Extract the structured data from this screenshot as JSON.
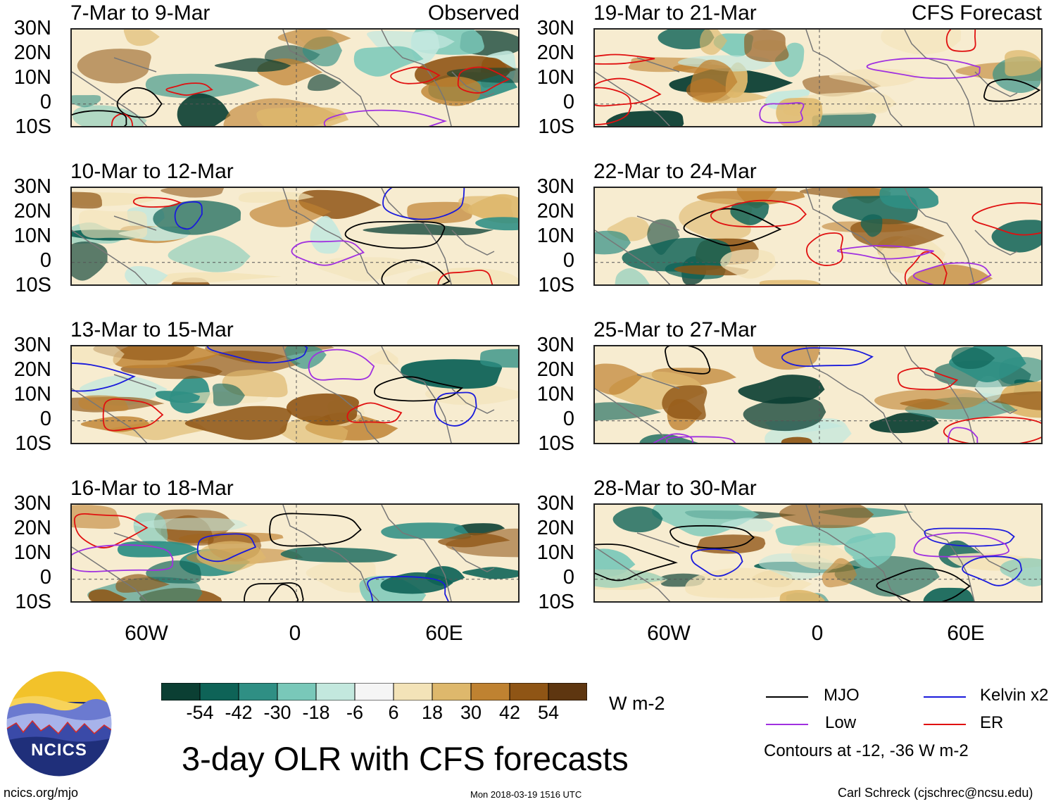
{
  "header": {
    "left_label": "Observed",
    "right_label": "CFS Forecast"
  },
  "panels_left": [
    {
      "period": "7-Mar to 9-Mar"
    },
    {
      "period": "10-Mar to 12-Mar"
    },
    {
      "period": "13-Mar to 15-Mar"
    },
    {
      "period": "16-Mar to 18-Mar"
    }
  ],
  "panels_right": [
    {
      "period": "19-Mar to 21-Mar"
    },
    {
      "period": "22-Mar to 24-Mar"
    },
    {
      "period": "25-Mar to 27-Mar"
    },
    {
      "period": "28-Mar to 30-Mar"
    }
  ],
  "axes": {
    "lat_ticks": [
      "30N",
      "20N",
      "10N",
      "0",
      "10S"
    ],
    "lon_ticks": [
      "60W",
      "0",
      "60E"
    ]
  },
  "colorbar": {
    "unit": "W m-2",
    "ticks": [
      "-54",
      "-42",
      "-30",
      "-18",
      "-6",
      "6",
      "18",
      "30",
      "42",
      "54"
    ],
    "colors": [
      "#0b3f33",
      "#0e6357",
      "#2f8f84",
      "#79c8b9",
      "#c3e8de",
      "#f5f5f5",
      "#f3e3b8",
      "#deb86c",
      "#bf8231",
      "#8f5515",
      "#5e3610"
    ]
  },
  "legend": {
    "items": [
      {
        "label": "MJO",
        "color": "#000000"
      },
      {
        "label": "Kelvin x2",
        "color": "#1a1adc"
      },
      {
        "label": "Low",
        "color": "#a030e0"
      },
      {
        "label": "ER",
        "color": "#e01010"
      }
    ],
    "note": "Contours at -12, -36 W m-2"
  },
  "title": "3-day OLR with CFS forecasts",
  "logo": {
    "text": "NCICS"
  },
  "footer": {
    "url": "ncics.org/mjo",
    "timestamp": "Mon 2018-03-19 1516 UTC",
    "credit": "Carl Schreck (cjschrec@ncsu.edu)"
  }
}
